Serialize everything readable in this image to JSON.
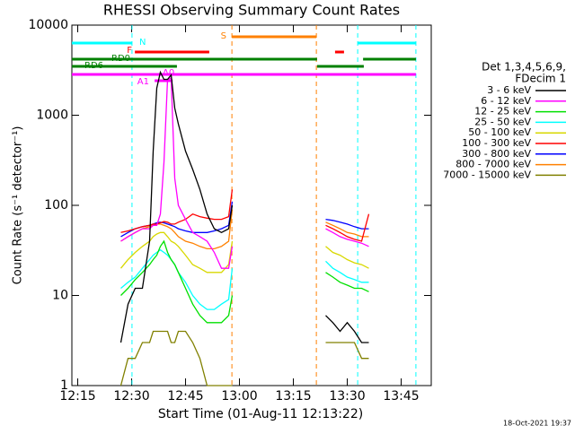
{
  "chart_data": {
    "type": "line",
    "title": "RHESSI Observing Summary Count Rates",
    "x_label": "Start Time (01-Aug-11 12:13:22)",
    "y_label": "Count Rate (s⁻¹ detector⁻¹)",
    "footer": "18-Oct-2021 19:37",
    "log_y": true,
    "xlim": [
      13.37,
      113.37
    ],
    "xticks": [
      {
        "value": 15,
        "label": "12:15"
      },
      {
        "value": 30,
        "label": "12:30"
      },
      {
        "value": 45,
        "label": "12:45"
      },
      {
        "value": 60,
        "label": "13:00"
      },
      {
        "value": 75,
        "label": "13:15"
      },
      {
        "value": 90,
        "label": "13:30"
      },
      {
        "value": 105,
        "label": "13:45"
      }
    ],
    "ylim": [
      1,
      10000
    ],
    "yticks": [
      1,
      10,
      100,
      1000,
      10000
    ],
    "legend_title": [
      "Det 1,3,4,5,6,9,",
      "FDecim 1"
    ],
    "x": [
      27,
      29,
      31,
      33,
      35,
      36,
      37,
      38,
      39,
      40,
      41,
      42,
      43,
      45,
      47,
      49,
      51,
      53,
      55,
      57,
      58,
      70,
      84,
      86,
      88,
      90,
      92,
      94,
      96
    ],
    "series": [
      {
        "name": "3 - 6 keV",
        "color": "#000000",
        "values": [
          3,
          8,
          12,
          12,
          40,
          400,
          2000,
          3000,
          2500,
          2500,
          2800,
          1200,
          800,
          400,
          250,
          150,
          80,
          55,
          50,
          55,
          100,
          null,
          6,
          5,
          4,
          5,
          4,
          3,
          3
        ]
      },
      {
        "name": "6 - 12 keV",
        "color": "#ff00ff",
        "values": [
          40,
          45,
          50,
          55,
          55,
          60,
          60,
          80,
          300,
          2500,
          2600,
          200,
          100,
          70,
          50,
          45,
          40,
          30,
          20,
          20,
          35,
          null,
          55,
          50,
          45,
          42,
          40,
          38,
          35
        ]
      },
      {
        "name": "12 - 25 keV",
        "color": "#00e000",
        "values": [
          10,
          12,
          15,
          18,
          22,
          25,
          28,
          35,
          40,
          30,
          25,
          22,
          18,
          12,
          8,
          6,
          5,
          5,
          5,
          6,
          10,
          null,
          18,
          16,
          14,
          13,
          12,
          12,
          11
        ]
      },
      {
        "name": "25 - 50 keV",
        "color": "#00ffff",
        "values": [
          12,
          14,
          16,
          20,
          25,
          28,
          30,
          32,
          30,
          28,
          25,
          22,
          18,
          14,
          10,
          8,
          7,
          7,
          8,
          9,
          20,
          null,
          24,
          20,
          18,
          16,
          15,
          14,
          14
        ]
      },
      {
        "name": "50 - 100 keV",
        "color": "#d8d800",
        "values": [
          20,
          25,
          30,
          35,
          40,
          45,
          48,
          50,
          50,
          45,
          40,
          38,
          35,
          28,
          22,
          20,
          18,
          18,
          18,
          22,
          40,
          null,
          35,
          30,
          28,
          25,
          23,
          22,
          20
        ]
      },
      {
        "name": "100 - 300 keV",
        "color": "#ff0000",
        "values": [
          50,
          52,
          55,
          58,
          60,
          62,
          62,
          64,
          66,
          65,
          62,
          62,
          65,
          70,
          80,
          75,
          72,
          70,
          70,
          75,
          150,
          null,
          60,
          55,
          50,
          45,
          42,
          40,
          80
        ]
      },
      {
        "name": "300 - 800 keV",
        "color": "#0000ff",
        "values": [
          45,
          50,
          55,
          58,
          60,
          62,
          64,
          65,
          64,
          62,
          60,
          58,
          55,
          52,
          50,
          50,
          50,
          52,
          55,
          60,
          110,
          null,
          70,
          68,
          65,
          62,
          58,
          55,
          55
        ]
      },
      {
        "name": "800 - 7000 keV",
        "color": "#ff8000",
        "values": [
          40,
          45,
          50,
          55,
          58,
          60,
          62,
          62,
          60,
          58,
          55,
          50,
          45,
          40,
          38,
          35,
          33,
          33,
          35,
          40,
          90,
          null,
          65,
          60,
          55,
          50,
          48,
          45,
          45
        ]
      },
      {
        "name": "7000 - 15000 keV",
        "color": "#808000",
        "values": [
          1,
          2,
          2,
          3,
          3,
          4,
          4,
          4,
          4,
          4,
          3,
          3,
          4,
          4,
          3,
          2,
          1,
          1,
          1,
          1,
          1,
          null,
          3,
          3,
          3,
          3,
          3,
          2,
          2
        ]
      }
    ],
    "states": [
      {
        "label": "N",
        "color": "#00ffff",
        "dashed_edges": true,
        "spans": [
          [
            13.37,
            30.1
          ],
          [
            92.9,
            109.1
          ]
        ]
      },
      {
        "label": "F",
        "color": "#ff0000",
        "spans": [
          [
            30.9,
            51.6
          ],
          [
            86.6,
            89.1
          ]
        ]
      },
      {
        "label": "S",
        "color": "#ff8000",
        "dashed_edges": true,
        "spans": [
          [
            57.9,
            81.4
          ]
        ]
      },
      {
        "label": "RD0",
        "color": "#008000",
        "spans": [
          [
            13.37,
            81.6
          ],
          [
            94.4,
            109.1
          ]
        ]
      },
      {
        "label": "RD6",
        "color": "#008000",
        "spans": [
          [
            13.37,
            42.6
          ],
          [
            81.6,
            94.6
          ]
        ]
      },
      {
        "label": "A1",
        "color": "#ff00ff",
        "spans": [
          [
            13.37,
            109.1
          ]
        ]
      },
      {
        "label": "A0",
        "color": "#ff00ff",
        "spans": [
          [
            36.4,
            41.4
          ]
        ]
      }
    ]
  }
}
